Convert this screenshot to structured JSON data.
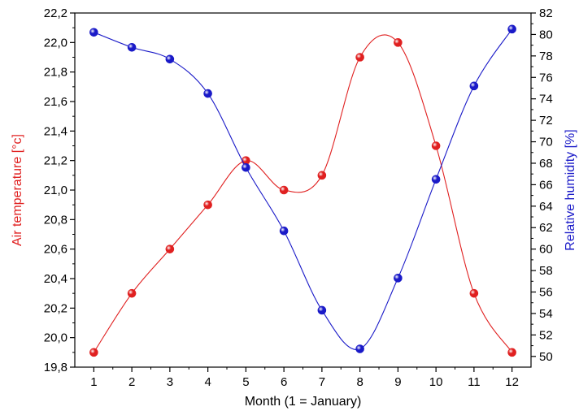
{
  "chart_data": {
    "type": "line",
    "xlabel": "Month (1 = January)",
    "x": [
      1,
      2,
      3,
      4,
      5,
      6,
      7,
      8,
      9,
      10,
      11,
      12
    ],
    "x_ticks": [
      "1",
      "2",
      "3",
      "4",
      "5",
      "6",
      "7",
      "8",
      "9",
      "10",
      "11",
      "12"
    ],
    "xlim": [
      0.5,
      12.5
    ],
    "y_left": {
      "label": "Air temperature [°c]",
      "color": "#e02020",
      "ylim": [
        19.8,
        22.2
      ],
      "ticks": [
        "19,8",
        "20,0",
        "20,2",
        "20,4",
        "20,6",
        "20,8",
        "21,0",
        "21,2",
        "21,4",
        "21,6",
        "21,8",
        "22,0",
        "22,2"
      ],
      "tick_values": [
        19.8,
        20.0,
        20.2,
        20.4,
        20.6,
        20.8,
        21.0,
        21.2,
        21.4,
        21.6,
        21.8,
        22.0,
        22.2
      ]
    },
    "y_right": {
      "label": "Relative humidity [%]",
      "color": "#1a1ac8",
      "ylim": [
        49,
        82
      ],
      "ticks": [
        "50",
        "52",
        "54",
        "56",
        "58",
        "60",
        "62",
        "64",
        "66",
        "68",
        "70",
        "72",
        "74",
        "76",
        "78",
        "80",
        "82"
      ],
      "tick_values": [
        50,
        52,
        54,
        56,
        58,
        60,
        62,
        64,
        66,
        68,
        70,
        72,
        74,
        76,
        78,
        80,
        82
      ]
    },
    "series": [
      {
        "axis": "left",
        "color": "#e02020",
        "values": [
          19.9,
          20.3,
          20.6,
          20.9,
          21.2,
          21.0,
          21.1,
          21.9,
          22.0,
          21.3,
          20.3,
          19.9
        ]
      },
      {
        "axis": "right",
        "color": "#1a1ac8",
        "values": [
          80.2,
          78.8,
          77.7,
          74.5,
          67.6,
          61.7,
          54.3,
          50.7,
          57.3,
          66.5,
          75.2,
          80.5
        ]
      }
    ]
  }
}
